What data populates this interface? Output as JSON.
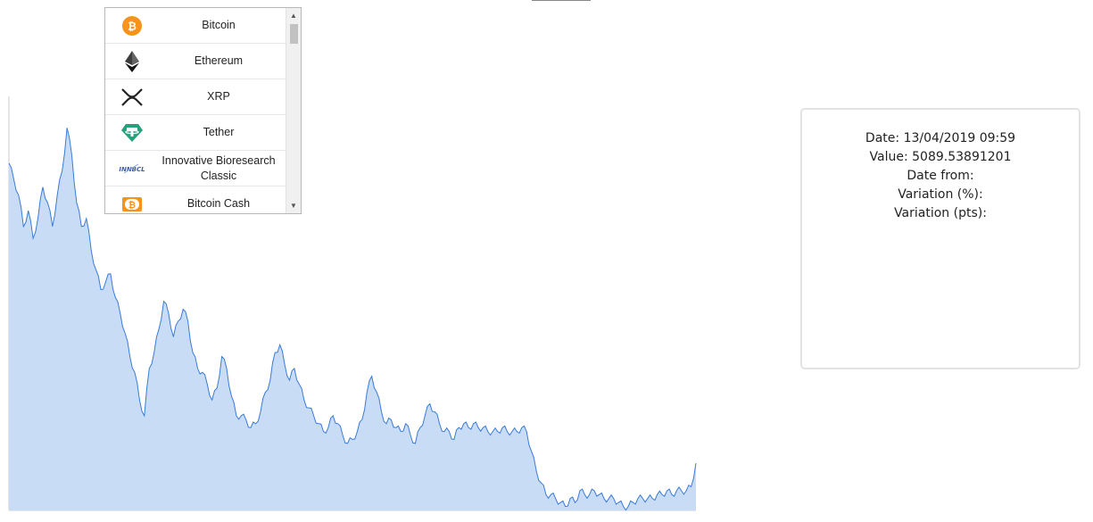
{
  "coins": [
    {
      "name": "Bitcoin",
      "icon": "bitcoin-icon",
      "color": "#f7931a"
    },
    {
      "name": "Ethereum",
      "icon": "ethereum-icon",
      "color": "#3c3c3d"
    },
    {
      "name": "XRP",
      "icon": "xrp-icon",
      "color": "#222222"
    },
    {
      "name": "Tether",
      "icon": "tether-icon",
      "color": "#26a17b"
    },
    {
      "name": "Innovative Bioresearch Classic",
      "icon": "innbcl-icon",
      "icon_text": "INNBCL",
      "color": "#3b5ba9"
    },
    {
      "name": "Bitcoin Cash",
      "icon": "bitcoin-cash-icon",
      "color": "#f7931a"
    }
  ],
  "info": {
    "date_label": "Date:",
    "date_value": "13/04/2019 09:59",
    "value_label": "Value:",
    "value_value": "5089.53891201",
    "date_from_label": "Date from:",
    "variation_pct_label": "Variation (%):",
    "variation_pts_label": "Variation (pts):"
  },
  "chart_data": {
    "type": "area",
    "fill_color": "#c9dcf6",
    "line_color": "#3a7bd5",
    "values": [
      0.88,
      0.84,
      0.8,
      0.72,
      0.76,
      0.69,
      0.74,
      0.82,
      0.78,
      0.72,
      0.8,
      0.86,
      0.97,
      0.9,
      0.78,
      0.72,
      0.74,
      0.66,
      0.61,
      0.56,
      0.58,
      0.6,
      0.54,
      0.5,
      0.45,
      0.39,
      0.35,
      0.28,
      0.24,
      0.36,
      0.4,
      0.46,
      0.53,
      0.5,
      0.44,
      0.48,
      0.51,
      0.48,
      0.4,
      0.36,
      0.35,
      0.32,
      0.28,
      0.31,
      0.39,
      0.36,
      0.29,
      0.24,
      0.24,
      0.23,
      0.21,
      0.22,
      0.25,
      0.3,
      0.33,
      0.4,
      0.42,
      0.37,
      0.33,
      0.36,
      0.32,
      0.28,
      0.26,
      0.24,
      0.22,
      0.2,
      0.21,
      0.24,
      0.22,
      0.19,
      0.17,
      0.18,
      0.2,
      0.23,
      0.3,
      0.34,
      0.3,
      0.25,
      0.22,
      0.23,
      0.21,
      0.2,
      0.22,
      0.19,
      0.17,
      0.21,
      0.24,
      0.27,
      0.25,
      0.22,
      0.2,
      0.2,
      0.18,
      0.21,
      0.22,
      0.21,
      0.22,
      0.21,
      0.21,
      0.2,
      0.2,
      0.2,
      0.21,
      0.2,
      0.2,
      0.2,
      0.21,
      0.2,
      0.15,
      0.1,
      0.07,
      0.04,
      0.04,
      0.03,
      0.02,
      0.01,
      0.03,
      0.02,
      0.05,
      0.04,
      0.04,
      0.05,
      0.04,
      0.03,
      0.03,
      0.03,
      0.02,
      0.01,
      0.01,
      0.02,
      0.03,
      0.03,
      0.03,
      0.03,
      0.04,
      0.04,
      0.05,
      0.04,
      0.05,
      0.05,
      0.05,
      0.06,
      0.12
    ]
  }
}
